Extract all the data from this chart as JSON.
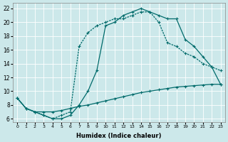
{
  "title": "",
  "xlabel": "Humidex (Indice chaleur)",
  "ylabel": "",
  "xlim": [
    -0.5,
    23.5
  ],
  "ylim": [
    5.5,
    22.8
  ],
  "xticks": [
    0,
    1,
    2,
    3,
    4,
    5,
    6,
    7,
    8,
    9,
    10,
    11,
    12,
    13,
    14,
    15,
    16,
    17,
    18,
    19,
    20,
    21,
    22,
    23
  ],
  "yticks": [
    6,
    8,
    10,
    12,
    14,
    16,
    18,
    20,
    22
  ],
  "bg_color": "#cce8ea",
  "line_color": "#006b6b",
  "line1_x": [
    0,
    1,
    2,
    3,
    4,
    5,
    6,
    7,
    8,
    9,
    10,
    11,
    12,
    13,
    14,
    15,
    16,
    17,
    18,
    19,
    20,
    21,
    22,
    23
  ],
  "line1_y": [
    9.0,
    7.5,
    7.0,
    7.0,
    7.0,
    7.2,
    7.5,
    7.8,
    8.0,
    8.3,
    8.6,
    8.9,
    9.2,
    9.5,
    9.8,
    10.0,
    10.2,
    10.4,
    10.6,
    10.7,
    10.8,
    10.9,
    11.0,
    11.0
  ],
  "line2_x": [
    0,
    1,
    2,
    3,
    4,
    5,
    6,
    7,
    8,
    9,
    10,
    11,
    12,
    13,
    14,
    15,
    16,
    17,
    18,
    19,
    20,
    21,
    22,
    23
  ],
  "line2_y": [
    9.0,
    7.5,
    7.0,
    6.5,
    6.0,
    6.5,
    7.0,
    16.5,
    18.5,
    19.5,
    20.0,
    20.5,
    20.5,
    21.0,
    21.5,
    21.5,
    20.0,
    17.0,
    16.5,
    15.5,
    15.0,
    14.0,
    13.5,
    13.0
  ],
  "line3_x": [
    0,
    1,
    2,
    3,
    4,
    5,
    6,
    7,
    8,
    9,
    10,
    11,
    12,
    13,
    14,
    15,
    16,
    17,
    18,
    19,
    20,
    21,
    22,
    23
  ],
  "line3_y": [
    9.0,
    7.5,
    7.0,
    6.5,
    6.0,
    6.0,
    6.5,
    8.0,
    10.0,
    13.0,
    19.5,
    20.0,
    21.0,
    21.5,
    22.0,
    21.5,
    21.0,
    20.5,
    20.5,
    17.5,
    16.5,
    15.0,
    13.5,
    11.0
  ]
}
